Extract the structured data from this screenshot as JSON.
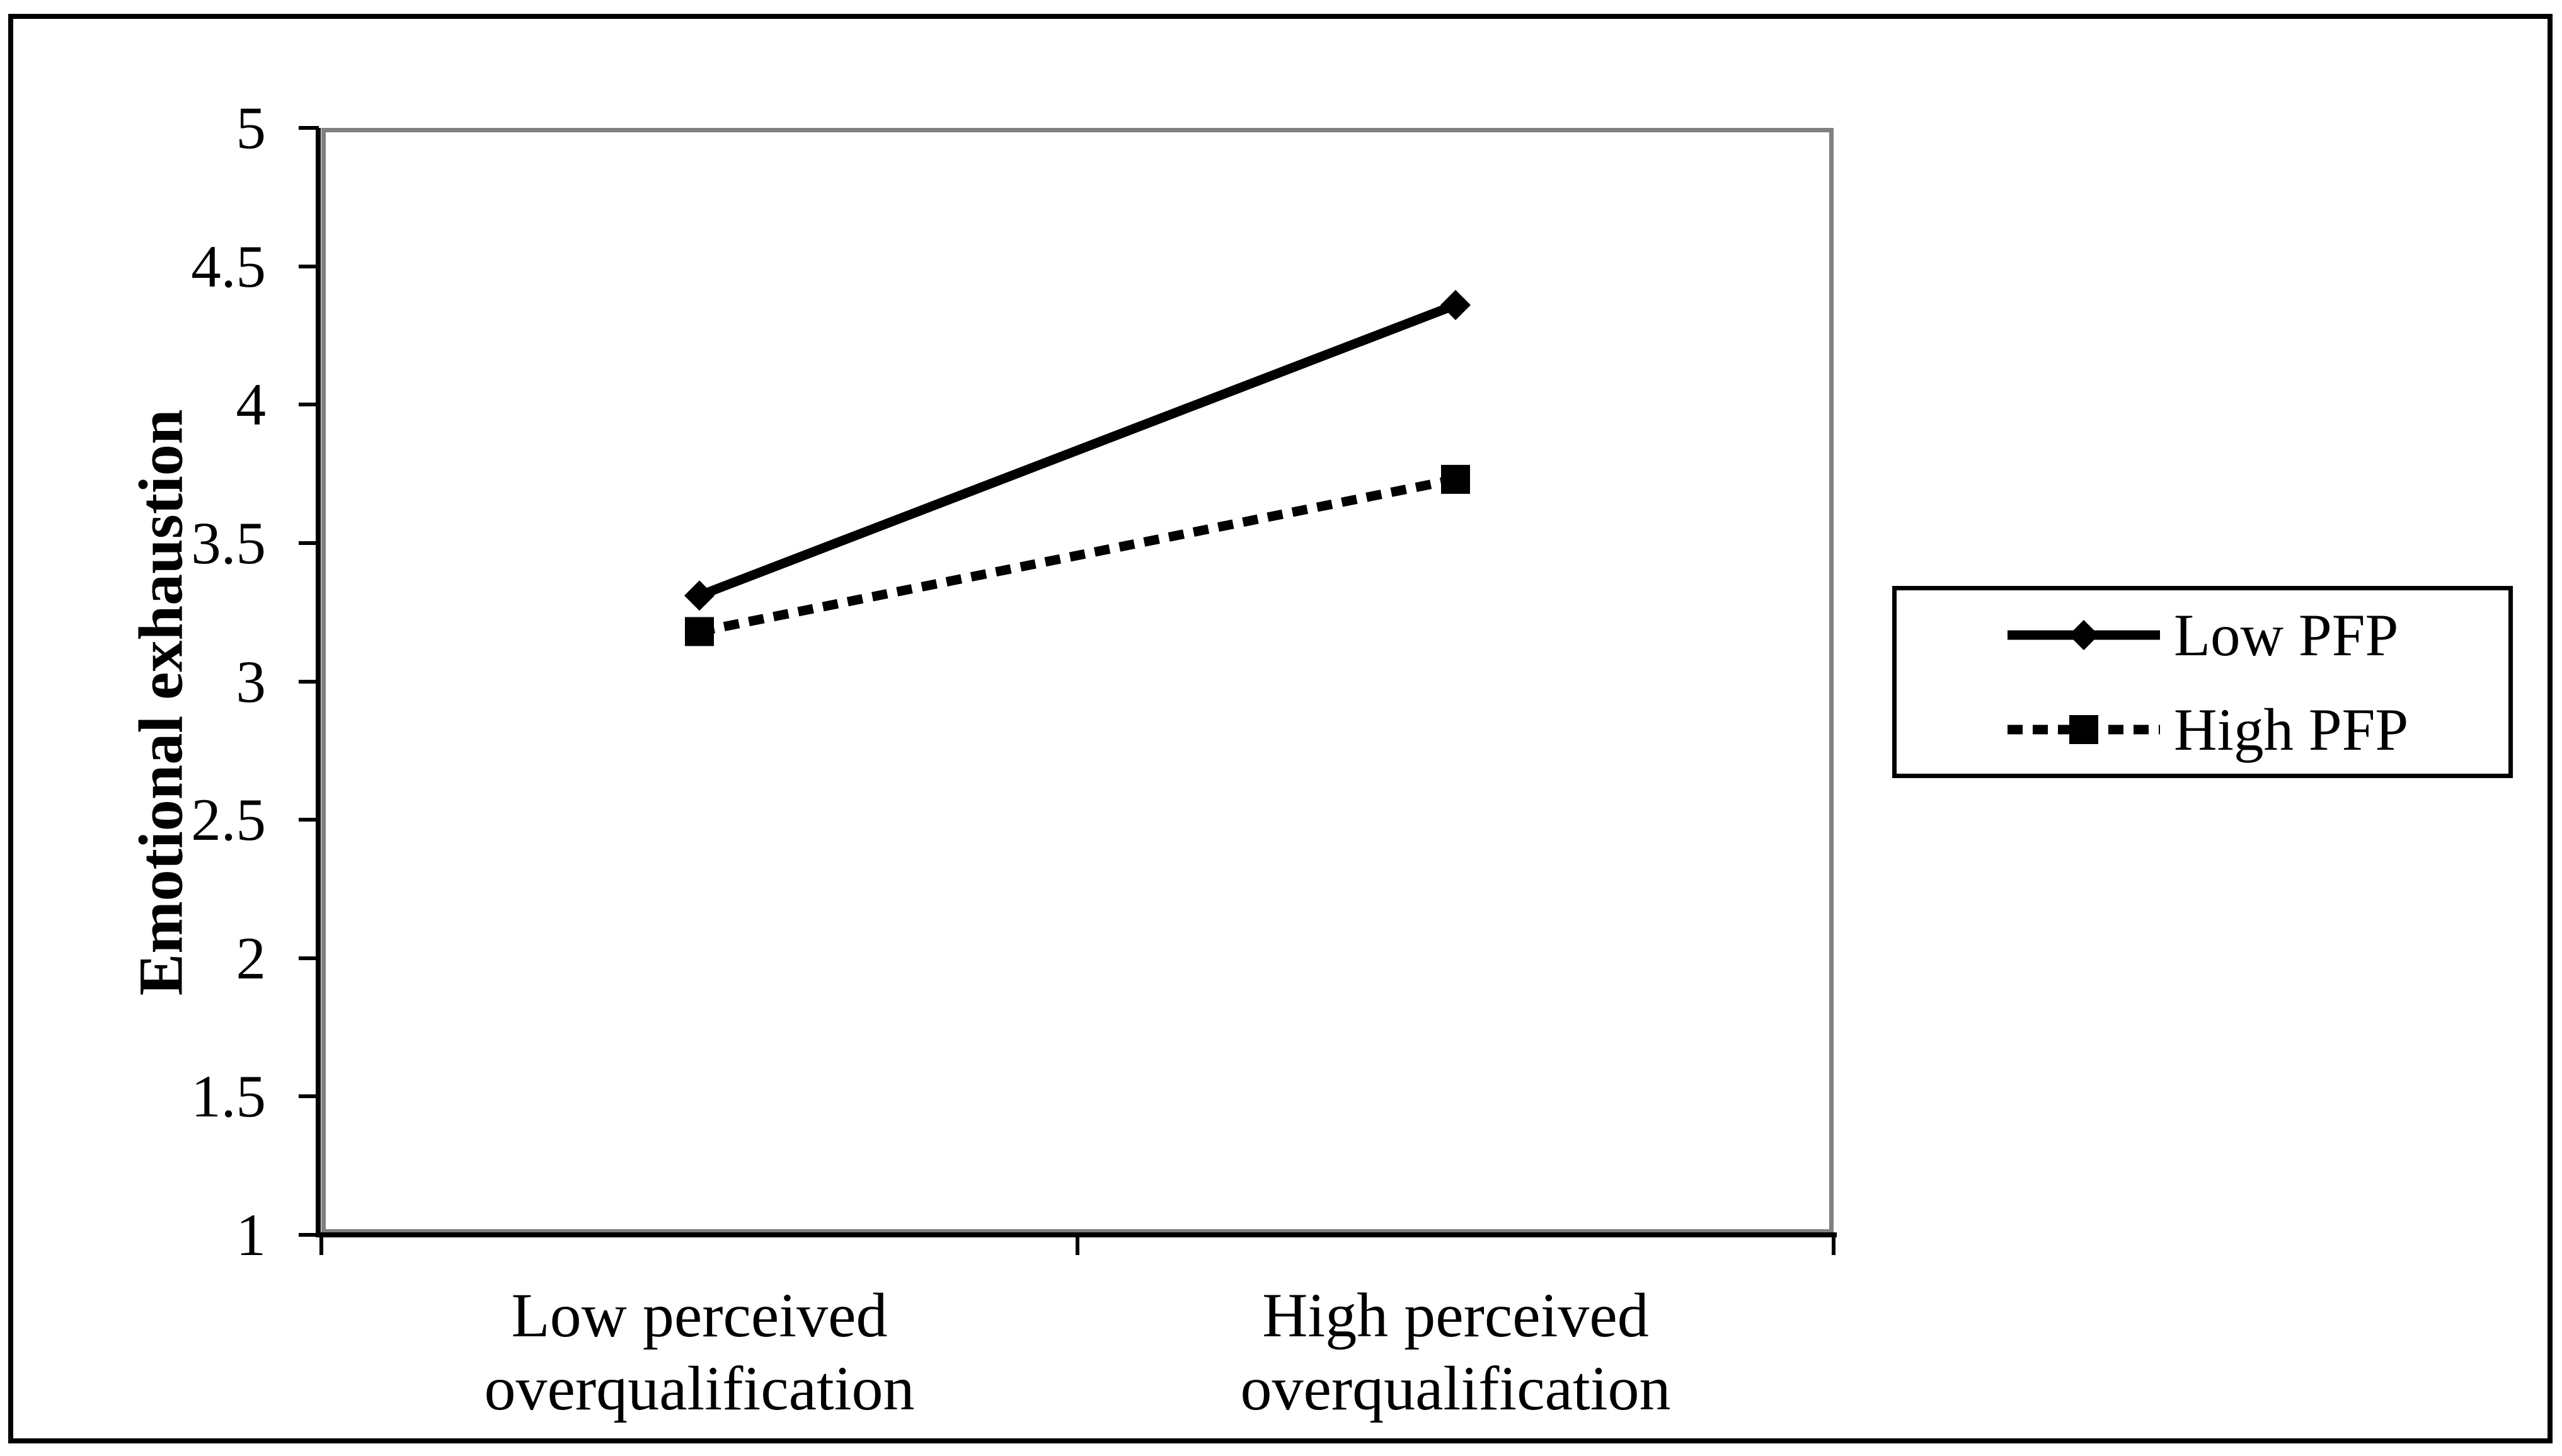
{
  "chart_data": {
    "type": "line",
    "title": "",
    "categories": [
      "Low perceived overqualification",
      "High perceived overqualification"
    ],
    "series": [
      {
        "name": "Low PFP",
        "values": [
          3.31,
          4.36
        ],
        "style": "solid",
        "marker": "diamond"
      },
      {
        "name": "High PFP",
        "values": [
          3.18,
          3.73
        ],
        "style": "dashed",
        "marker": "square"
      }
    ],
    "xlabel": "",
    "ylabel": "Emotional exhaustion",
    "ylim": [
      1,
      5
    ],
    "yticks": [
      5,
      4.5,
      4,
      3.5,
      3,
      2.5,
      2,
      1.5,
      1
    ],
    "grid": false,
    "legend_position": "right",
    "colors": {
      "series_line": "#000000",
      "plot_border": "#808080",
      "axis": "#000000",
      "outer_border": "#000000",
      "background": "#ffffff"
    }
  }
}
